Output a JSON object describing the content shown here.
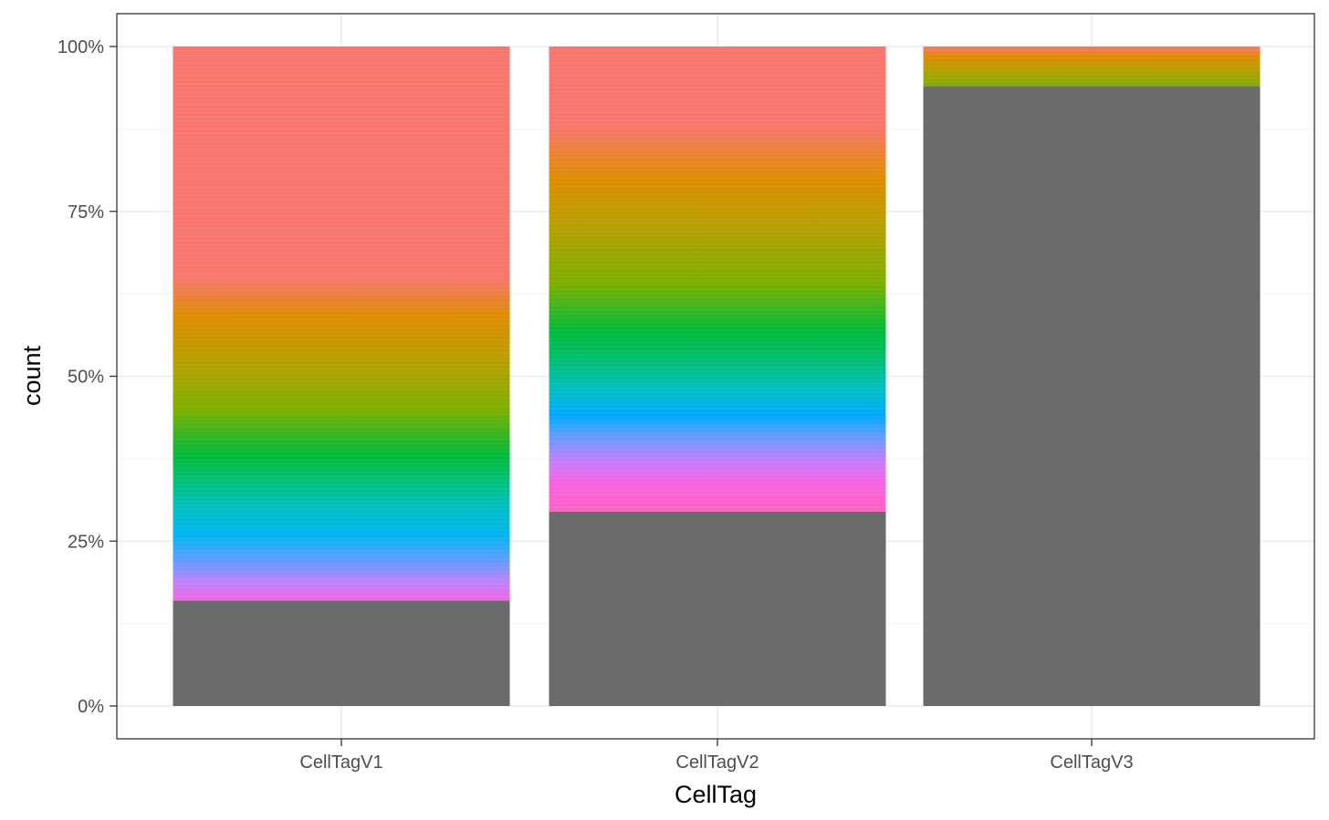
{
  "chart_data": {
    "type": "bar",
    "stacked": true,
    "position": "fill",
    "title": "",
    "xlabel": "CellTag",
    "ylabel": "count",
    "categories": [
      "CellTagV1",
      "CellTagV2",
      "CellTagV3"
    ],
    "y_ticks": [
      "0%",
      "25%",
      "50%",
      "75%",
      "100%"
    ],
    "ylim": [
      0,
      1
    ],
    "grid": true,
    "legend": "none",
    "unassigned_color": "#6b6b6b",
    "bars": [
      {
        "category": "CellTagV1",
        "unassigned_fraction": 0.16,
        "hue_stops": [
          {
            "at": 0.16,
            "color": "#f564e3"
          },
          {
            "at": 0.19,
            "color": "#b983ff"
          },
          {
            "at": 0.22,
            "color": "#619cff"
          },
          {
            "at": 0.26,
            "color": "#00b4f0"
          },
          {
            "at": 0.3,
            "color": "#00bfc4"
          },
          {
            "at": 0.33,
            "color": "#00c08b"
          },
          {
            "at": 0.38,
            "color": "#00ba38"
          },
          {
            "at": 0.45,
            "color": "#7cae00"
          },
          {
            "at": 0.52,
            "color": "#b79f00"
          },
          {
            "at": 0.59,
            "color": "#de8c00"
          },
          {
            "at": 0.65,
            "color": "#f8766d"
          },
          {
            "at": 1.0,
            "color": "#f8766d"
          }
        ]
      },
      {
        "category": "CellTagV2",
        "unassigned_fraction": 0.295,
        "hue_stops": [
          {
            "at": 0.295,
            "color": "#ff61c3"
          },
          {
            "at": 0.34,
            "color": "#f564e3"
          },
          {
            "at": 0.37,
            "color": "#c77cff"
          },
          {
            "at": 0.41,
            "color": "#619cff"
          },
          {
            "at": 0.44,
            "color": "#00a9ff"
          },
          {
            "at": 0.48,
            "color": "#00bfc4"
          },
          {
            "at": 0.53,
            "color": "#00be67"
          },
          {
            "at": 0.57,
            "color": "#00ba38"
          },
          {
            "at": 0.64,
            "color": "#7cae00"
          },
          {
            "at": 0.73,
            "color": "#b79f00"
          },
          {
            "at": 0.8,
            "color": "#de8c00"
          },
          {
            "at": 0.88,
            "color": "#f8766d"
          },
          {
            "at": 1.0,
            "color": "#f8766d"
          }
        ]
      },
      {
        "category": "CellTagV3",
        "unassigned_fraction": 0.94,
        "hue_stops": [
          {
            "at": 0.94,
            "color": "#7cae00"
          },
          {
            "at": 0.965,
            "color": "#b79f00"
          },
          {
            "at": 0.985,
            "color": "#de8c00"
          },
          {
            "at": 1.0,
            "color": "#f8766d"
          }
        ]
      }
    ]
  }
}
